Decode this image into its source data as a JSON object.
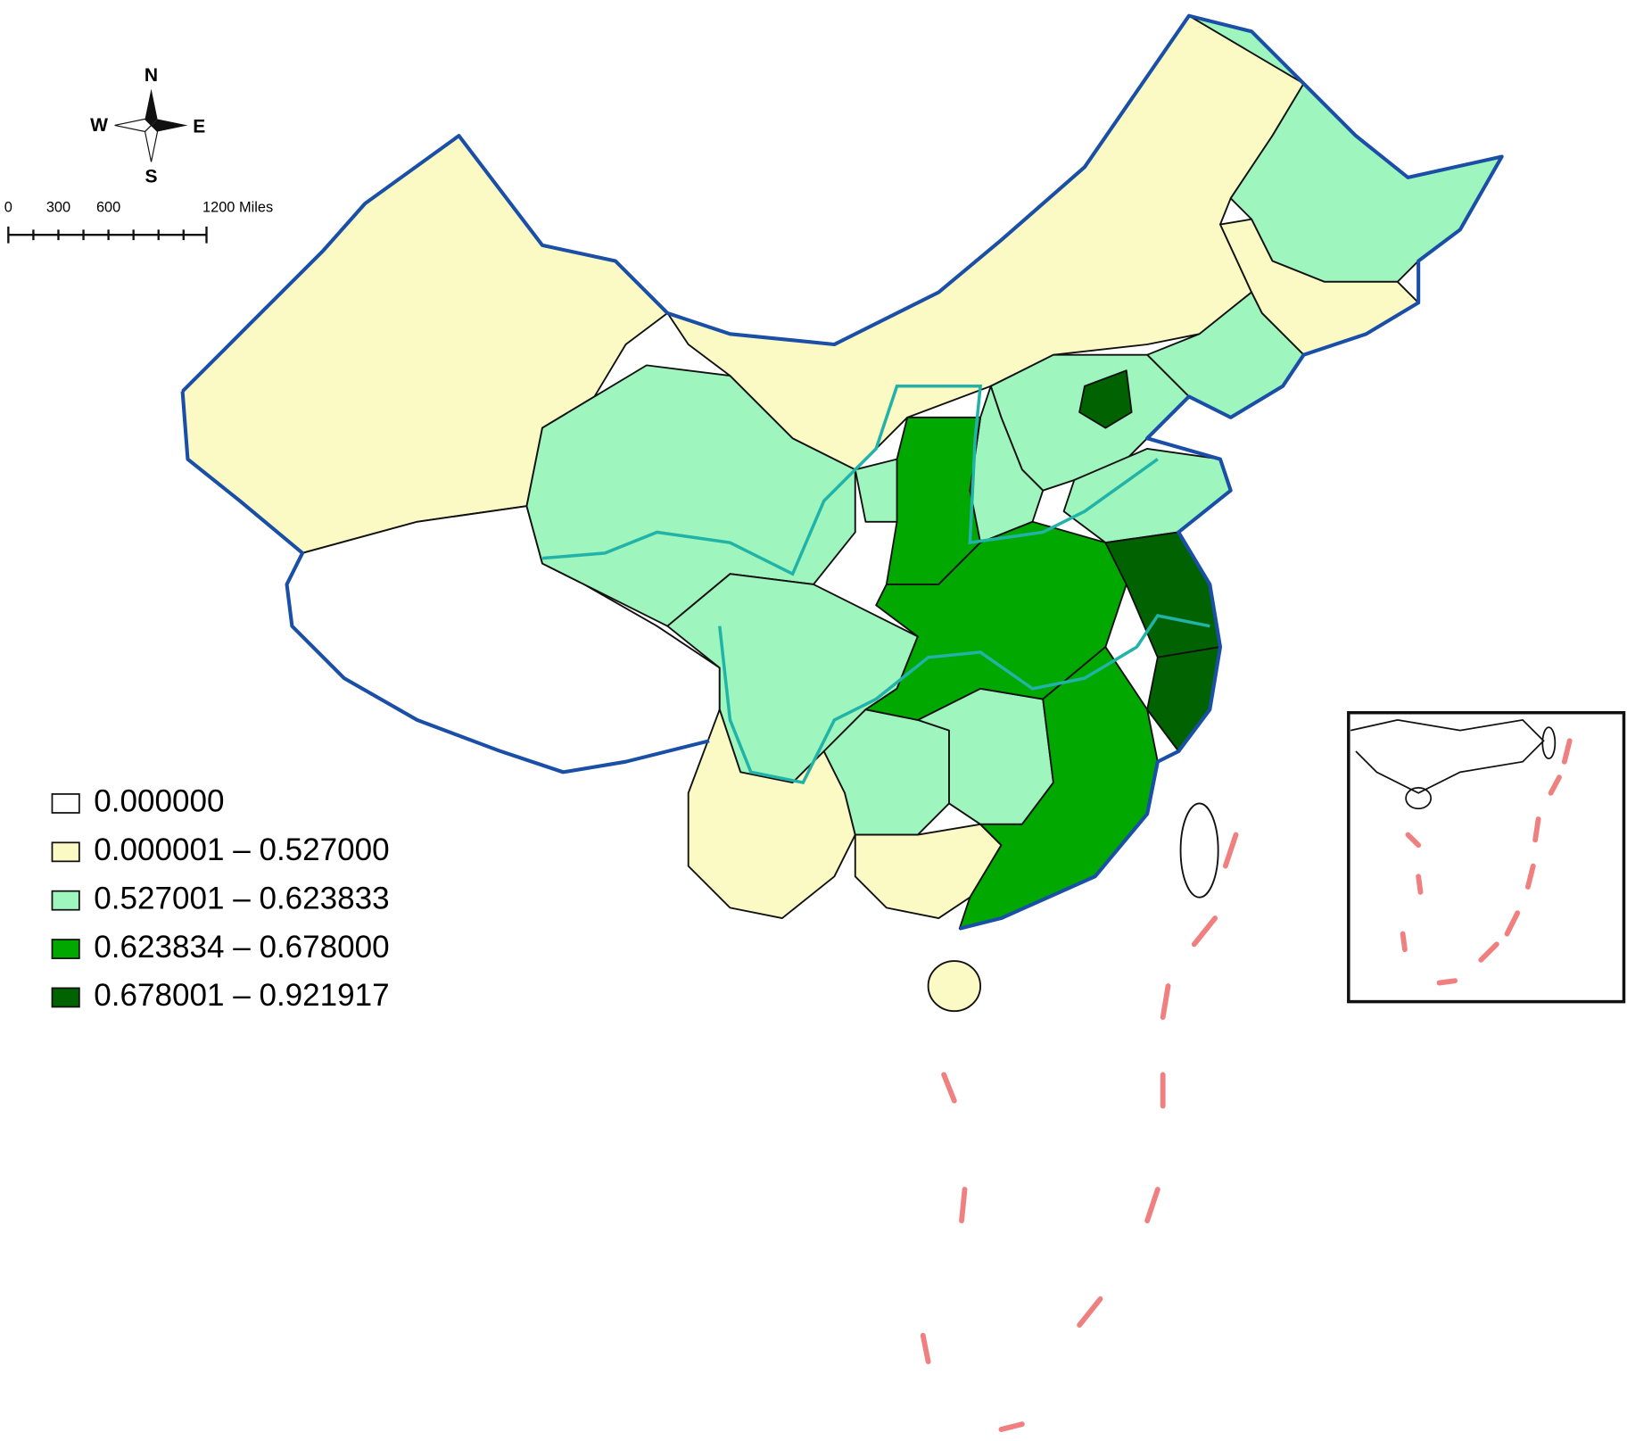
{
  "compass": {
    "north": "N",
    "south": "S",
    "west": "W",
    "east": "E"
  },
  "scale_bar": {
    "labels": [
      "0",
      "300",
      "600",
      "1200 Miles"
    ]
  },
  "legend": {
    "items": [
      {
        "label": "0.000000",
        "color": "#ffffff"
      },
      {
        "label": "0.000001 – 0.527000",
        "color": "#fbfac4"
      },
      {
        "label": "0.527001 – 0.623833",
        "color": "#9ef5bd"
      },
      {
        "label": "0.623834 – 0.678000",
        "color": "#00a800"
      },
      {
        "label": "0.678001 – 0.921917",
        "color": "#006200"
      }
    ]
  }
}
